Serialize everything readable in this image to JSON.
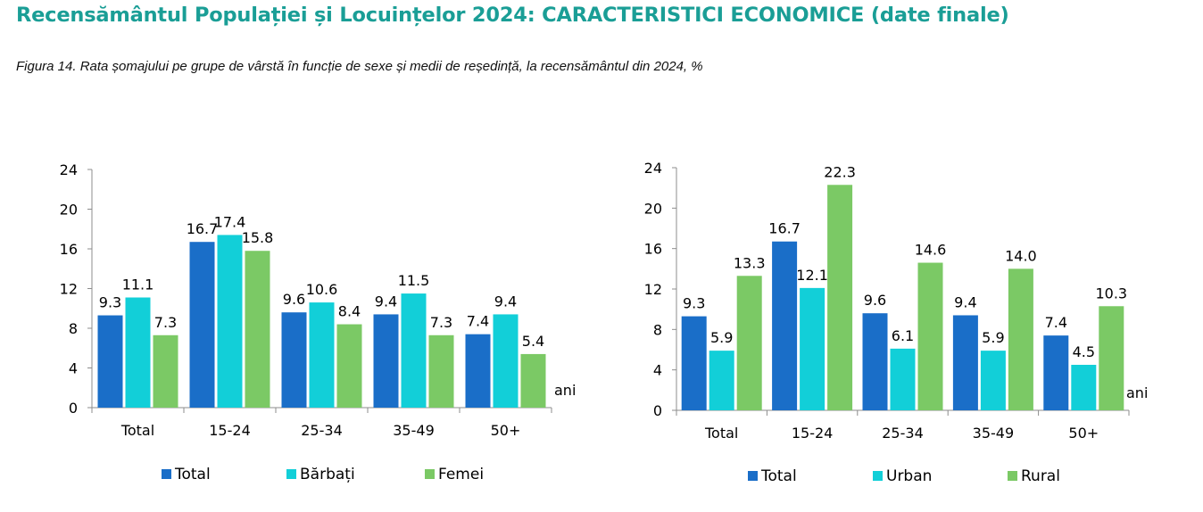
{
  "header": {
    "title": "Recensământul Populației și Locuințelor 2024: CARACTERISTICI ECONOMICE (date finale)",
    "caption": "Figura 14. Rata șomajului pe grupe de vârstă în funcție de sexe și medii de reședință, la recensământul din 2024, %"
  },
  "chart_data": [
    {
      "type": "bar",
      "title": "",
      "categories": [
        "Total",
        "15-24",
        "25-34",
        "35-49",
        "50+"
      ],
      "series": [
        {
          "name": "Total",
          "color": "#1a6ec8",
          "values": [
            9.3,
            16.7,
            9.6,
            9.4,
            7.4
          ]
        },
        {
          "name": "Bărbați",
          "color": "#12cfd8",
          "values": [
            11.1,
            17.4,
            10.6,
            11.5,
            9.4
          ]
        },
        {
          "name": "Femei",
          "color": "#7bc965",
          "values": [
            7.3,
            15.8,
            8.4,
            7.3,
            5.4
          ]
        }
      ],
      "yticks": [
        0,
        4,
        8,
        12,
        16,
        20,
        24
      ],
      "ylim": [
        0,
        24
      ],
      "xlabel": "ani",
      "ylabel": "",
      "grid": false,
      "legend": "bottom"
    },
    {
      "type": "bar",
      "title": "",
      "categories": [
        "Total",
        "15-24",
        "25-34",
        "35-49",
        "50+"
      ],
      "series": [
        {
          "name": "Total",
          "color": "#1a6ec8",
          "values": [
            9.3,
            16.7,
            9.6,
            9.4,
            7.4
          ]
        },
        {
          "name": "Urban",
          "color": "#12cfd8",
          "values": [
            5.9,
            12.1,
            6.1,
            5.9,
            4.5
          ]
        },
        {
          "name": "Rural",
          "color": "#7bc965",
          "values": [
            13.3,
            22.3,
            14.6,
            14.0,
            10.3
          ]
        }
      ],
      "yticks": [
        0,
        4,
        8,
        12,
        16,
        20,
        24
      ],
      "ylim": [
        0,
        24
      ],
      "xlabel": "ani",
      "ylabel": "",
      "grid": false,
      "legend": "bottom"
    }
  ]
}
